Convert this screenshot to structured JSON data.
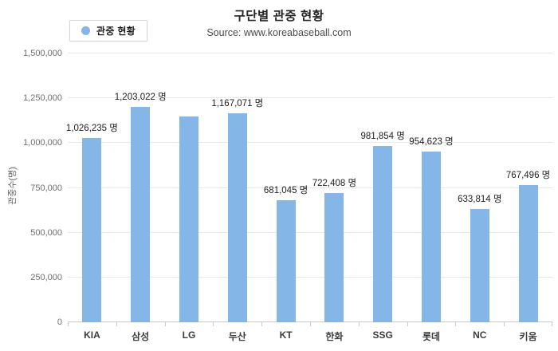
{
  "header": {
    "title": "구단별 관중 현황",
    "source": "Source: www.koreabaseball.com"
  },
  "legend": {
    "label": "관중 현황",
    "marker_color": "#84b7e8",
    "position": "top-left"
  },
  "colors": {
    "bar": "#84b7e8",
    "gridline": "#e8e8e8",
    "axis": "#c9c9c9",
    "background": "#ffffff"
  },
  "chart_data": {
    "type": "bar",
    "title": "구단별 관중 현황",
    "subtitle": "Source: www.koreabaseball.com",
    "categories": [
      "KIA",
      "삼성",
      "LG",
      "두산",
      "KT",
      "한화",
      "SSG",
      "롯데",
      "NC",
      "키움"
    ],
    "values": [
      1026235,
      1203022,
      1148000,
      1167071,
      681045,
      722408,
      981854,
      954623,
      633814,
      767496
    ],
    "value_labels": [
      "1,026,235 명",
      "1,203,022 명",
      "",
      "1,167,071 명",
      "681,045 명",
      "722,408 명",
      "981,854 명",
      "954,623 명",
      "633,814 명",
      "767,496 명"
    ],
    "xlabel": "",
    "ylabel": "관중수(명)",
    "ylim": [
      0,
      1500000
    ],
    "y_tick_values": [
      0,
      250000,
      500000,
      750000,
      1000000,
      1250000,
      1500000
    ],
    "y_tick_labels": [
      "0",
      "250,000",
      "500,000",
      "750,000",
      "1,000,000",
      "1,250,000",
      "1,500,000"
    ],
    "grid": true,
    "legend_entries": [
      "관중 현황"
    ],
    "legend_position": "top-left",
    "bar_color": "#84b7e8"
  }
}
